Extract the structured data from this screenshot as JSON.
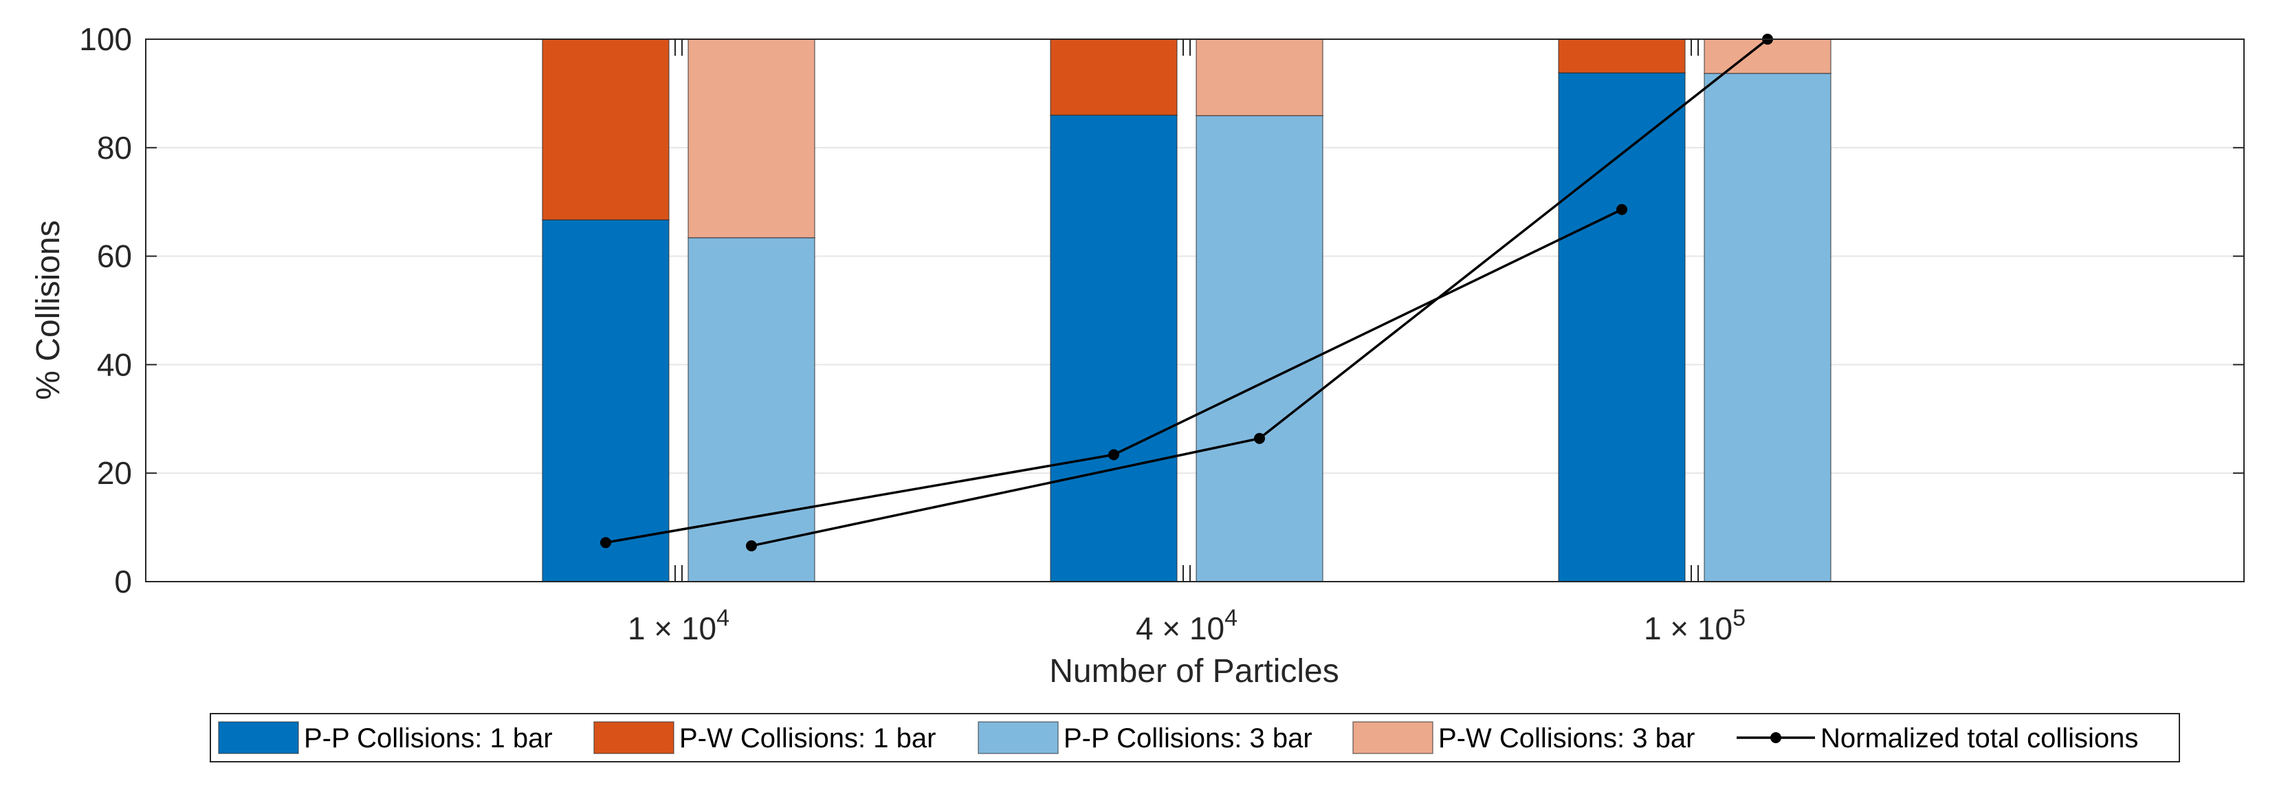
{
  "chart_data": {
    "type": "bar",
    "subtype": "stacked-grouped-bar-with-lines",
    "title": "",
    "xlabel": "Number of Particles",
    "ylabel": "% Collisions",
    "ylim": [
      0,
      100
    ],
    "yticks": [
      0,
      20,
      40,
      60,
      80,
      100
    ],
    "grid": true,
    "legend_position": "bottom",
    "categories": [
      {
        "base": "1",
        "exp": "4"
      },
      {
        "base": "4",
        "exp": "4"
      },
      {
        "base": "1",
        "exp": "5"
      }
    ],
    "series": [
      {
        "name": "P-P Collisions: 1 bar",
        "group": "1 bar",
        "stack": "bottom",
        "color": "#0072BD",
        "values": [
          66.7,
          86.0,
          93.8
        ]
      },
      {
        "name": "P-W Collisions: 1 bar",
        "group": "1 bar",
        "stack": "top",
        "color": "#D95319",
        "values": [
          33.3,
          14.0,
          6.2
        ]
      },
      {
        "name": "P-P Collisions: 3 bar",
        "group": "3 bar",
        "stack": "bottom",
        "color": "#80B9DE",
        "values": [
          63.4,
          85.9,
          93.7
        ]
      },
      {
        "name": "P-W Collisions: 3 bar",
        "group": "3 bar",
        "stack": "top",
        "color": "#ECA98C",
        "values": [
          36.6,
          14.1,
          6.3
        ]
      }
    ],
    "lines": [
      {
        "name": "Normalized total collisions",
        "group": "1 bar",
        "color": "#000000",
        "values": [
          7.2,
          23.4,
          68.6
        ]
      },
      {
        "name": "Normalized total collisions",
        "group": "3 bar",
        "color": "#000000",
        "values": [
          6.6,
          26.4,
          100.0
        ]
      }
    ],
    "legend": [
      "P-P Collisions: 1 bar",
      "P-W Collisions: 1 bar",
      "P-P Collisions: 3 bar",
      "P-W Collisions: 3 bar",
      "Normalized total collisions"
    ]
  }
}
